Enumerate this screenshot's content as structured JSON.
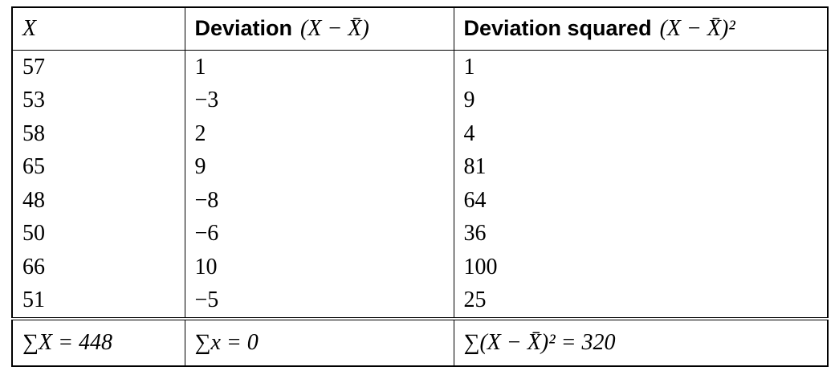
{
  "table": {
    "header": [
      {
        "math": "X"
      },
      {
        "label": "Deviation",
        "math": "(X − X̄)"
      },
      {
        "label": "Deviation squared",
        "math": "(X − X̄)²"
      }
    ],
    "rows": [
      [
        "57",
        "1",
        "1"
      ],
      [
        "53",
        "−3",
        "9"
      ],
      [
        "58",
        "2",
        "4"
      ],
      [
        "65",
        "9",
        "81"
      ],
      [
        "48",
        "−8",
        "64"
      ],
      [
        "50",
        "−6",
        "36"
      ],
      [
        "66",
        "10",
        "100"
      ],
      [
        "51",
        "−5",
        "25"
      ]
    ],
    "footer": [
      "∑X = 448",
      "∑x = 0",
      "∑(X − X̄)² = 320"
    ]
  }
}
